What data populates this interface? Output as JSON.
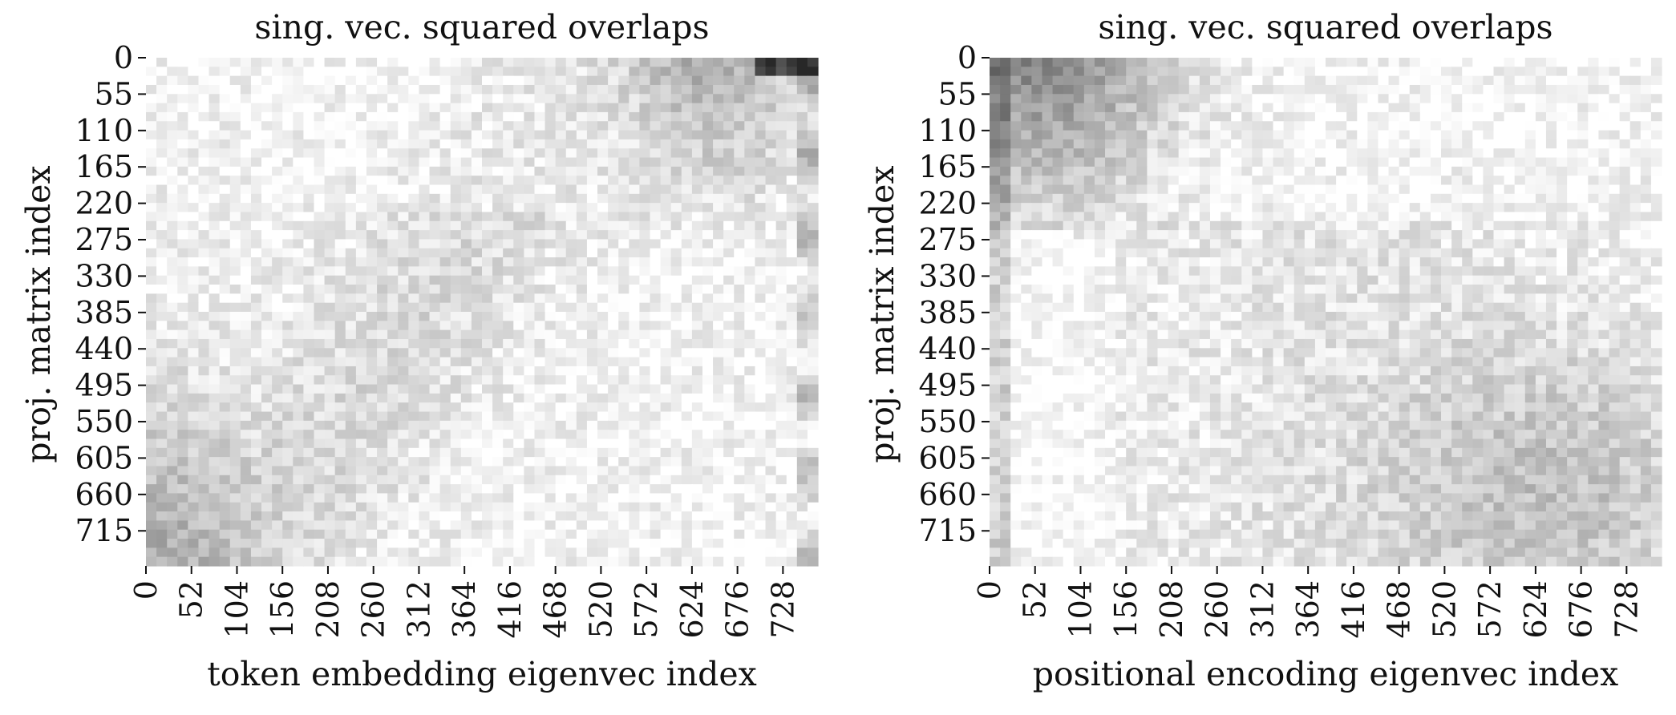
{
  "chart_data": [
    {
      "type": "heatmap",
      "title": "sing. vec. squared overlaps",
      "xlabel": "token embedding eigenvec index",
      "ylabel": "proj. matrix index",
      "x_ticks": [
        "0",
        "52",
        "104",
        "156",
        "208",
        "260",
        "312",
        "364",
        "416",
        "468",
        "520",
        "572",
        "624",
        "676",
        "728"
      ],
      "y_ticks": [
        "0",
        "55",
        "110",
        "165",
        "220",
        "275",
        "330",
        "385",
        "440",
        "495",
        "550",
        "605",
        "660",
        "715"
      ],
      "xlim": [
        0,
        768
      ],
      "ylim": [
        0,
        768
      ],
      "colormap": "Greys",
      "colorbar": false,
      "pattern": "token"
    },
    {
      "type": "heatmap",
      "title": "sing. vec. squared overlaps",
      "xlabel": "positional encoding eigenvec index",
      "ylabel": "proj. matrix index",
      "x_ticks": [
        "0",
        "52",
        "104",
        "156",
        "208",
        "260",
        "312",
        "364",
        "416",
        "468",
        "520",
        "572",
        "624",
        "676",
        "728"
      ],
      "y_ticks": [
        "0",
        "55",
        "110",
        "165",
        "220",
        "275",
        "330",
        "385",
        "440",
        "495",
        "550",
        "605",
        "660",
        "715"
      ],
      "xlim": [
        0,
        768
      ],
      "ylim": [
        0,
        768
      ],
      "colormap": "Greys",
      "colorbar": false,
      "pattern": "positional"
    }
  ]
}
